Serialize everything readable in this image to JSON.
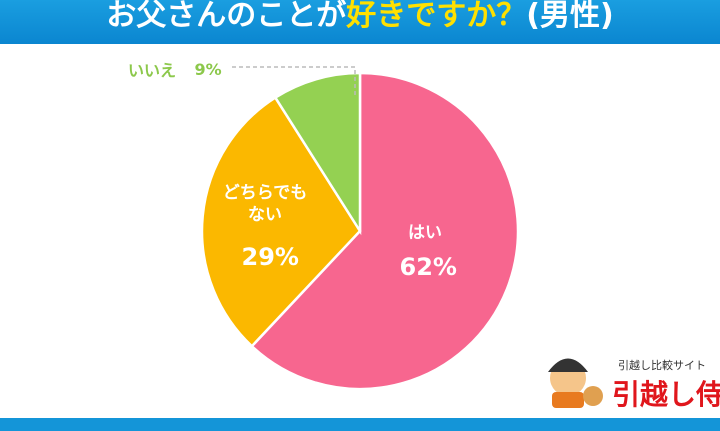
{
  "chart_data": {
    "type": "pie",
    "title": [
      "お父さんのことが",
      "好きですか？",
      "(男性)"
    ],
    "categories": [
      "はい",
      "どちらでもない",
      "いいえ"
    ],
    "values": [
      62,
      29,
      9
    ],
    "value_labels": [
      "62%",
      "29%",
      "9%"
    ],
    "colors": [
      "#f7668f",
      "#fbb800",
      "#94d152"
    ]
  },
  "brand": {
    "tagline": "引越し比較サイト",
    "name": "引越し侍"
  }
}
